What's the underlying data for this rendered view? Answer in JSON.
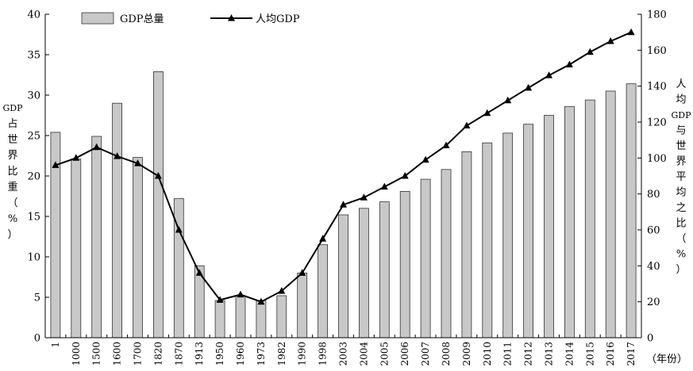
{
  "chart_data": {
    "type": "bar+line",
    "categories": [
      "1",
      "1000",
      "1500",
      "1600",
      "1700",
      "1820",
      "1870",
      "1913",
      "1950",
      "1960",
      "1973",
      "1982",
      "1990",
      "1998",
      "2003",
      "2004",
      "2005",
      "2006",
      "2007",
      "2008",
      "2009",
      "2010",
      "2011",
      "2012",
      "2013",
      "2014",
      "2015",
      "2016",
      "2017"
    ],
    "series": [
      {
        "name": "GDP总量",
        "type": "bar",
        "axis": "left",
        "color": "#c8c8c8",
        "values": [
          25.4,
          22.1,
          24.9,
          29.0,
          22.3,
          32.9,
          17.2,
          8.9,
          4.6,
          5.2,
          4.6,
          5.2,
          8.0,
          11.5,
          15.2,
          16.0,
          16.8,
          18.1,
          19.6,
          20.8,
          23.0,
          24.1,
          25.3,
          26.4,
          27.5,
          28.6,
          29.4,
          30.5,
          31.4
        ]
      },
      {
        "name": "人均GDP",
        "type": "line",
        "axis": "right",
        "color": "#000000",
        "values": [
          96,
          100,
          106,
          101,
          97,
          90,
          60,
          36,
          21,
          24,
          20,
          26,
          36,
          55,
          74,
          78,
          84,
          90,
          99,
          107,
          118,
          125,
          132,
          139,
          146,
          152,
          159,
          165,
          170
        ]
      }
    ],
    "yaxis_left": {
      "label": "GDP占世界比重（%）",
      "range": [
        0,
        40
      ],
      "ticks": [
        "0",
        "5",
        "10",
        "15",
        "20",
        "25",
        "30",
        "35",
        "40"
      ]
    },
    "yaxis_right": {
      "label": "人均GDP与世界平均之比（%）",
      "range": [
        0,
        180
      ],
      "ticks": [
        "0",
        "20",
        "40",
        "60",
        "80",
        "100",
        "120",
        "140",
        "160",
        "180"
      ]
    },
    "xaxis": {
      "label": "（年份）"
    },
    "grid": false,
    "legend": {
      "placement": "top-left"
    }
  }
}
